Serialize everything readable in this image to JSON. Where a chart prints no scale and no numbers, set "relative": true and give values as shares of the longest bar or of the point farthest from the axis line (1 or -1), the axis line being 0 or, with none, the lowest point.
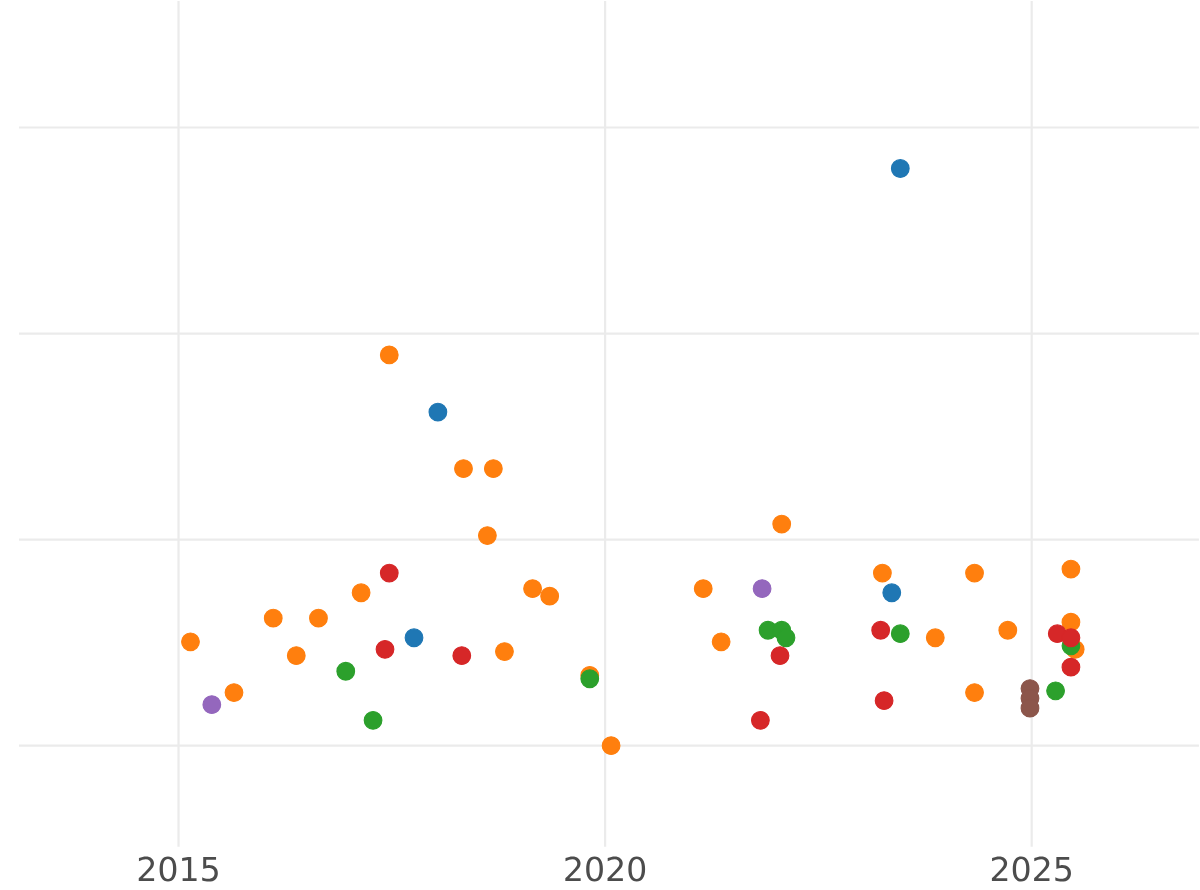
{
  "chart_data": {
    "type": "scatter",
    "relative": true,
    "xlim": [
      2013.13,
      2026.96
    ],
    "xticks": [
      2015,
      2020,
      2025
    ],
    "grid": true,
    "marker": "circle",
    "series": [
      {
        "color": "#ff7f0e",
        "x": [
          2015.14,
          2015.65,
          2016.11,
          2016.38,
          2016.64,
          2017.14,
          2017.47,
          2018.34,
          2018.69,
          2018.62,
          2018.82,
          2019.15,
          2019.35,
          2019.82,
          2020.07,
          2021.15,
          2021.36,
          2022.07,
          2023.25,
          2023.87,
          2024.33,
          2024.33,
          2024.72,
          2025.46,
          2025.46,
          2025.51
        ],
        "values": [
          0.18,
          0.092,
          0.221,
          0.156,
          0.221,
          0.265,
          0.677,
          0.48,
          0.48,
          0.364,
          0.163,
          0.272,
          0.259,
          0.122,
          0,
          0.272,
          0.18,
          0.384,
          0.299,
          0.187,
          0.299,
          0.092,
          0.2,
          0.306,
          0.214,
          0.167
        ]
      },
      {
        "color": "#1f77b4",
        "x": [
          2018.04,
          2017.76,
          2023.36,
          2023.46
        ],
        "values": [
          0.578,
          0.187,
          0.265,
          1.0
        ]
      },
      {
        "color": "#2ca02c",
        "x": [
          2016.96,
          2017.28,
          2019.82,
          2021.91,
          2022.07,
          2022.12,
          2023.46,
          2025.28,
          2025.46
        ],
        "values": [
          0.129,
          0.044,
          0.116,
          0.2,
          0.2,
          0.187,
          0.194,
          0.095,
          0.173
        ]
      },
      {
        "color": "#d62728",
        "x": [
          2017.47,
          2017.42,
          2018.32,
          2021.82,
          2022.05,
          2023.23,
          2023.27,
          2025.3,
          2025.46,
          2025.46
        ],
        "values": [
          0.299,
          0.167,
          0.156,
          0.044,
          0.156,
          0.2,
          0.078,
          0.194,
          0.187,
          0.136
        ]
      },
      {
        "color": "#9467bd",
        "x": [
          2015.39,
          2021.84
        ],
        "values": [
          0.071,
          0.272
        ]
      },
      {
        "color": "#8c564b",
        "x": [
          2024.98,
          2024.98,
          2024.98
        ],
        "values": [
          0.099,
          0.082,
          0.065
        ]
      }
    ]
  }
}
